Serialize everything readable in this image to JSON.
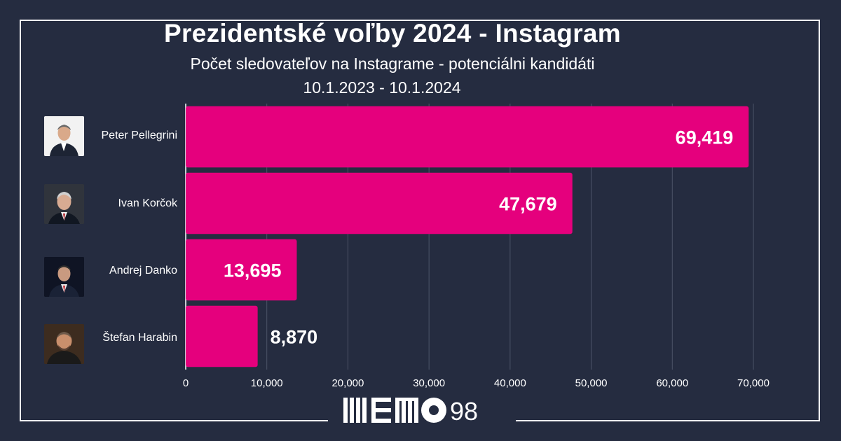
{
  "header": {
    "title": "Prezidentské voľby 2024 - Instagram",
    "subtitle": "Počet sledovateľov na Instagrame - potenciálni kandidáti",
    "date_range": "10.1.2023 - 10.1.2024"
  },
  "chart_data": {
    "type": "bar",
    "orientation": "horizontal",
    "categories": [
      "Peter Pellegrini",
      "Ivan Korčok",
      "Andrej Danko",
      "Štefan Harabin"
    ],
    "values": [
      69419,
      47679,
      13695,
      8870
    ],
    "value_labels": [
      "69,419",
      "47,679",
      "13,695",
      "8,870"
    ],
    "xlim": [
      0,
      70000
    ],
    "x_ticks": [
      0,
      10000,
      20000,
      30000,
      40000,
      50000,
      60000,
      70000
    ],
    "x_tick_labels": [
      "0",
      "10,000",
      "20,000",
      "30,000",
      "40,000",
      "50,000",
      "60,000",
      "70,000"
    ],
    "grid": true,
    "bar_color": "#e5007d",
    "background_color": "#252c40",
    "grid_color": "#4c5468"
  },
  "candidates": [
    {
      "name": "Peter Pellegrini",
      "photo": "portrait-icon"
    },
    {
      "name": "Ivan Korčok",
      "photo": "portrait-icon"
    },
    {
      "name": "Andrej Danko",
      "photo": "portrait-icon"
    },
    {
      "name": "Štefan Harabin",
      "photo": "portrait-icon"
    }
  ],
  "logo": {
    "suffix_text": "98",
    "icon": "memo98-logo"
  }
}
